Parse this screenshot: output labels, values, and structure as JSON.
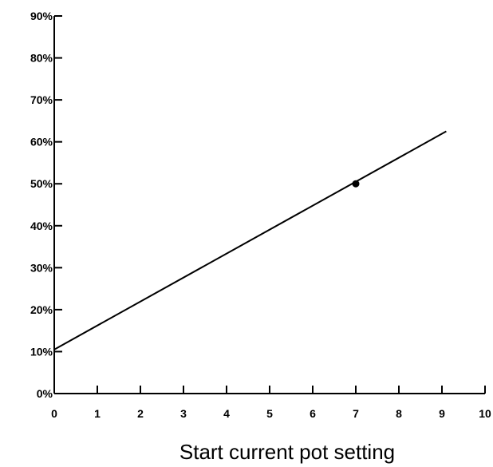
{
  "chart_data": {
    "type": "line",
    "title": "",
    "xlabel": "Start current pot setting",
    "ylabel": "",
    "xlim": [
      0,
      10
    ],
    "ylim": [
      0,
      90
    ],
    "x_ticks": [
      0,
      1,
      2,
      3,
      4,
      5,
      6,
      7,
      8,
      9,
      10
    ],
    "x_tick_labels": [
      "0",
      "1",
      "2",
      "3",
      "4",
      "5",
      "6",
      "7",
      "8",
      "9",
      "10"
    ],
    "y_ticks": [
      0,
      10,
      20,
      30,
      40,
      50,
      60,
      70,
      80,
      90
    ],
    "y_tick_labels": [
      "0%",
      "10%",
      "20%",
      "30%",
      "40%",
      "50%",
      "60%",
      "70%",
      "80%",
      "90%"
    ],
    "grid": false,
    "legend": "none",
    "series": [
      {
        "x": [
          0,
          9.1
        ],
        "values": [
          10.5,
          62.5
        ]
      }
    ],
    "markers": [
      {
        "x": 7,
        "y": 50
      }
    ]
  }
}
